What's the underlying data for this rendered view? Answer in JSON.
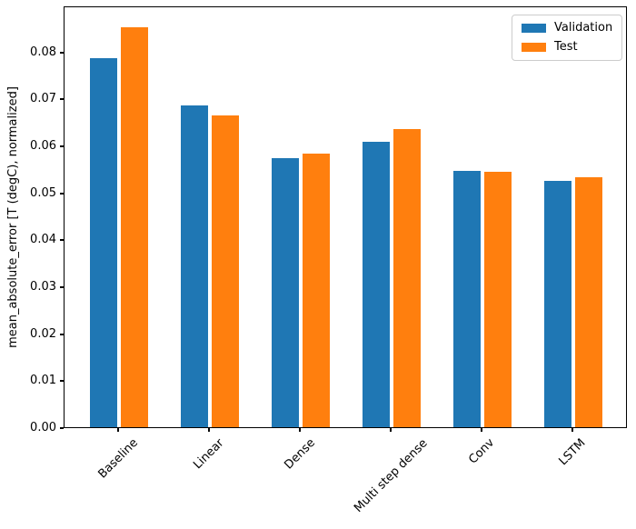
{
  "chart_data": {
    "type": "bar",
    "title": "",
    "xlabel": "",
    "ylabel": "mean_absolute_error [T (degC), normalized]",
    "categories": [
      "Baseline",
      "Linear",
      "Dense",
      "Multi step dense",
      "Conv",
      "LSTM"
    ],
    "series": [
      {
        "name": "Validation",
        "color": "#1f77b4",
        "values": [
          0.0785,
          0.0686,
          0.0572,
          0.0607,
          0.0545,
          0.0524
        ]
      },
      {
        "name": "Test",
        "color": "#ff7f0e",
        "values": [
          0.0852,
          0.0663,
          0.0583,
          0.0634,
          0.0543,
          0.0532
        ]
      }
    ],
    "ylim": [
      0,
      0.0898
    ],
    "yticks": [
      0,
      0.01,
      0.02,
      0.03,
      0.04,
      0.05,
      0.06,
      0.07,
      0.08
    ],
    "ytick_labels": [
      "0.00",
      "0.01",
      "0.02",
      "0.03",
      "0.04",
      "0.05",
      "0.06",
      "0.07",
      "0.08"
    ],
    "xtick_rotation": 45,
    "grid": false,
    "legend_position": "upper right",
    "bar_group_width": 0.3,
    "bar_offset": 0.17
  }
}
